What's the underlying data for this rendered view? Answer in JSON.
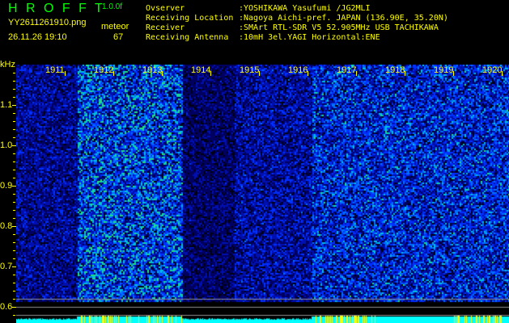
{
  "header": {
    "app_name": "H R O F F T",
    "version": "1.0.0f",
    "filename": "YY2611261910.png",
    "datetime": "26.11.26 19:10",
    "meteor_label": "meteor",
    "meteor_count": "67"
  },
  "info": [
    {
      "label": "Ovserver",
      "value": ":YOSHIKAWA Yasufumi /JG2MLI"
    },
    {
      "label": "Receiving Location",
      "value": ":Nagoya Aichi-pref. JAPAN (136.90E, 35.20N)"
    },
    {
      "label": "Receiver",
      "value": ":SMArt RTL-SDR V5 52.905MHz USB TACHIKAWA"
    },
    {
      "label": "Receiving Antenna",
      "value": ":10mH 3el.YAGI Horizontal:ENE"
    }
  ],
  "axis": {
    "y_unit": "kHz",
    "y_ticks": [
      "1.1",
      "1.0",
      "0.9",
      "0.8",
      "0.7",
      "0.6"
    ],
    "x_ticks": [
      "1911",
      "1912",
      "1913",
      "1914",
      "1915",
      "1916",
      "1917",
      "1918",
      "1919",
      "1920"
    ]
  },
  "colors": {
    "text_yellow": "#ffff00",
    "title_green": "#00ff00",
    "baseline_cyan": "#00ffff"
  }
}
